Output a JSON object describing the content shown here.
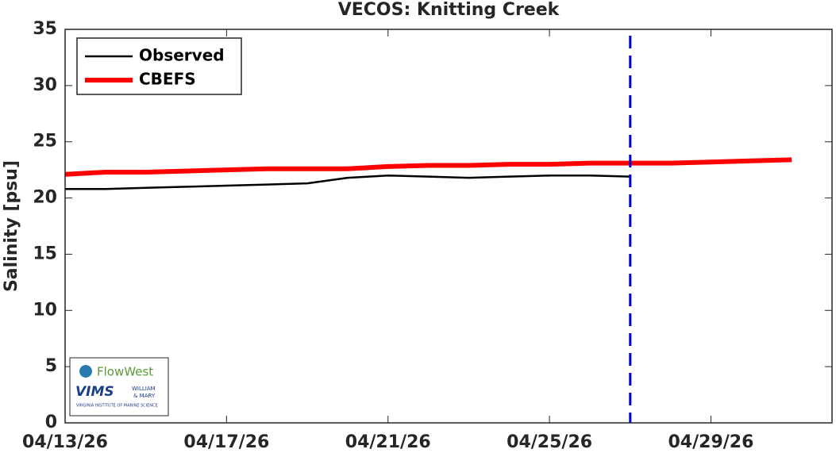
{
  "chart_data": {
    "type": "line",
    "title": "VECOS: Knitting Creek",
    "ylabel": "Salinity [psu]",
    "x": [
      "04/13/26",
      "04/14/26",
      "04/15/26",
      "04/16/26",
      "04/17/26",
      "04/18/26",
      "04/19/26",
      "04/20/26",
      "04/21/26",
      "04/22/26",
      "04/23/26",
      "04/24/26",
      "04/25/26",
      "04/26/26",
      "04/27/26",
      "04/28/26",
      "04/29/26",
      "04/30/26",
      "05/01/26"
    ],
    "series": [
      {
        "name": "Observed",
        "color": "#000000",
        "linewidth": 2.5,
        "values": [
          20.8,
          20.8,
          20.9,
          21.0,
          21.1,
          21.2,
          21.3,
          21.8,
          22.0,
          21.9,
          21.8,
          21.9,
          22.0,
          22.0,
          21.9,
          null,
          null,
          null,
          null
        ]
      },
      {
        "name": "CBEFS",
        "color": "#ff0000",
        "linewidth": 6,
        "values": [
          22.1,
          22.3,
          22.3,
          22.4,
          22.5,
          22.6,
          22.6,
          22.6,
          22.8,
          22.9,
          22.9,
          23.0,
          23.0,
          23.1,
          23.1,
          23.1,
          23.2,
          23.3,
          23.4
        ]
      }
    ],
    "xlim": [
      "04/13/26",
      "05/02/26"
    ],
    "xticks": [
      "04/13/26",
      "04/17/26",
      "04/21/26",
      "04/25/26",
      "04/29/26"
    ],
    "ylim": [
      0,
      35
    ],
    "yticks": [
      0,
      5,
      10,
      15,
      20,
      25,
      30,
      35
    ],
    "grid": false,
    "legend": "upper left",
    "vline": {
      "x": "04/27/26",
      "color": "#0000dd"
    },
    "annotations": [
      "FlowWest",
      "VIMS",
      "WILLIAM",
      "& MARY",
      "VIRGINIA INSTITUTE OF MARINE SCIENCE"
    ]
  }
}
